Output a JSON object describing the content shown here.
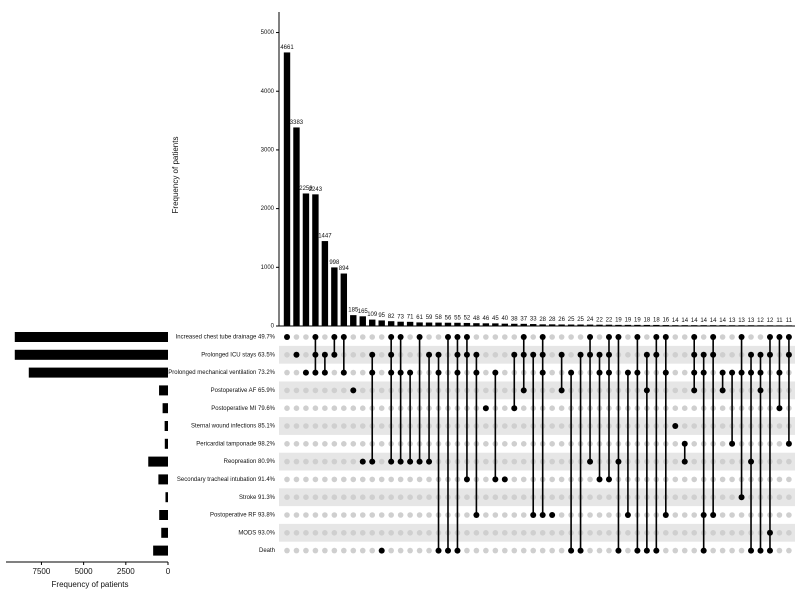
{
  "chart_data": {
    "type": "upset",
    "y_title": "Frequency of patients",
    "x_title": "Frequency of patients",
    "color": "#000000",
    "values": [
      4661,
      3383,
      2258,
      2243,
      1447,
      998,
      894,
      185,
      165,
      109,
      95,
      82,
      73,
      71,
      61,
      59,
      58,
      56,
      55,
      52,
      48,
      46,
      45,
      40,
      38,
      37,
      33,
      28,
      28,
      26,
      25,
      25,
      24,
      22,
      22,
      19,
      19,
      19,
      18,
      18,
      16,
      14,
      14,
      14,
      14,
      14,
      14,
      13,
      13,
      13,
      12,
      12,
      11,
      11
    ],
    "memberships": [
      [
        0
      ],
      [
        1
      ],
      [
        2
      ],
      [
        0,
        1,
        2
      ],
      [
        1,
        2
      ],
      [
        0,
        1
      ],
      [
        0,
        2
      ],
      [
        3
      ],
      [
        7
      ],
      [
        1,
        2,
        7
      ],
      [
        12
      ],
      [
        0,
        1,
        2,
        7
      ],
      [
        0,
        2,
        7
      ],
      [
        2,
        7
      ],
      [
        0,
        7
      ],
      [
        1,
        7
      ],
      [
        1,
        2,
        12
      ],
      [
        0,
        12
      ],
      [
        0,
        1,
        2,
        12
      ],
      [
        0,
        1,
        8
      ],
      [
        1,
        2,
        10
      ],
      [
        4
      ],
      [
        2,
        8
      ],
      [
        8
      ],
      [
        1,
        4
      ],
      [
        0,
        1,
        3
      ],
      [
        1,
        10
      ],
      [
        0,
        1,
        2,
        10
      ],
      [
        10
      ],
      [
        1,
        3
      ],
      [
        2,
        12
      ],
      [
        1,
        12
      ],
      [
        0,
        1,
        7
      ],
      [
        1,
        2,
        8
      ],
      [
        0,
        1,
        2,
        8
      ],
      [
        0,
        7,
        12
      ],
      [
        2,
        10
      ],
      [
        0,
        2,
        12
      ],
      [
        1,
        3,
        12
      ],
      [
        0,
        1,
        12
      ],
      [
        0,
        2,
        10
      ],
      [
        5
      ],
      [
        6,
        7
      ],
      [
        0,
        1,
        2,
        3
      ],
      [
        1,
        2,
        10,
        12
      ],
      [
        0,
        1,
        10
      ],
      [
        2,
        3
      ],
      [
        2,
        6
      ],
      [
        0,
        2,
        9
      ],
      [
        1,
        2,
        7,
        12
      ],
      [
        1,
        2,
        3,
        12
      ],
      [
        0,
        1,
        11,
        12
      ],
      [
        0,
        2,
        4
      ],
      [
        0,
        1,
        6
      ]
    ],
    "ylim": [
      0,
      5350
    ],
    "yticks": [
      0,
      1000,
      2000,
      3000,
      4000,
      5000
    ],
    "set_names": [
      "Increased chest tube drainage 49.7%",
      "Prolonged ICU stays 63.5%",
      "Prolonged mechanical ventilation 73.2%",
      "Postoperative AF 65.9%",
      "Postoperative MI 79.6%",
      "Sternal wound infections 85.1%",
      "Pericardial tamponade 98.2%",
      "Reopreation 80.9%",
      "Secondary tracheal intubation 91.4%",
      "Stroke 91.3%",
      "Postoperative RF 93.8%",
      "MODS 93.0%",
      "Death"
    ],
    "set_sizes": [
      9080,
      9080,
      8250,
      530,
      320,
      200,
      190,
      1170,
      570,
      150,
      520,
      400,
      880
    ],
    "xlim": [
      9600,
      0
    ],
    "xticks": [
      7500,
      5000,
      2500,
      0
    ]
  }
}
